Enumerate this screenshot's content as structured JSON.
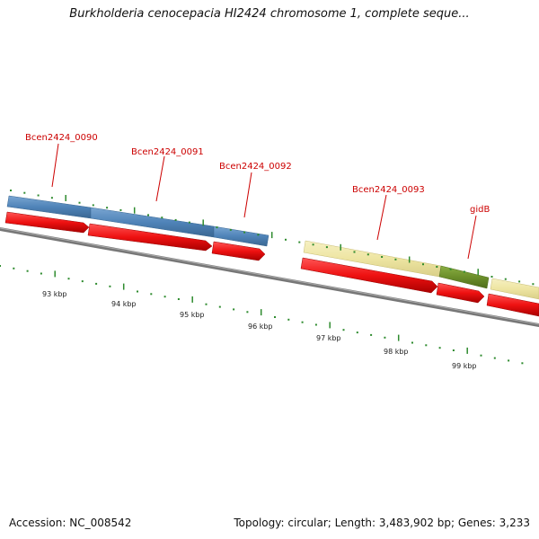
{
  "header": {
    "title": "Burkholderia cenocepacia HI2424 chromosome 1, complete seque..."
  },
  "footer": {
    "accession": "Accession: NC_008542",
    "summary": "Topology: circular; Length: 3,483,902 bp; Genes: 3,233"
  },
  "map": {
    "colors": {
      "cds": "#ee1111",
      "gene_blue": "#4f83b8",
      "gene_pale": "#eee5a2",
      "gene_green": "#6b8e2a",
      "backbone": "#777777",
      "ticks": "#2e8b2e",
      "label": "#cc0000"
    },
    "gene_labels": [
      {
        "id": "bcen-0090",
        "text": "Bcen2424_0090"
      },
      {
        "id": "bcen-0091",
        "text": "Bcen2424_0091"
      },
      {
        "id": "bcen-0092",
        "text": "Bcen2424_0092"
      },
      {
        "id": "bcen-0093",
        "text": "Bcen2424_0093"
      },
      {
        "id": "gidb",
        "text": "gidB"
      }
    ],
    "kbp_labels": [
      "93 kbp",
      "94 kbp",
      "95 kbp",
      "96 kbp",
      "97 kbp",
      "98 kbp",
      "99 kbp"
    ]
  }
}
